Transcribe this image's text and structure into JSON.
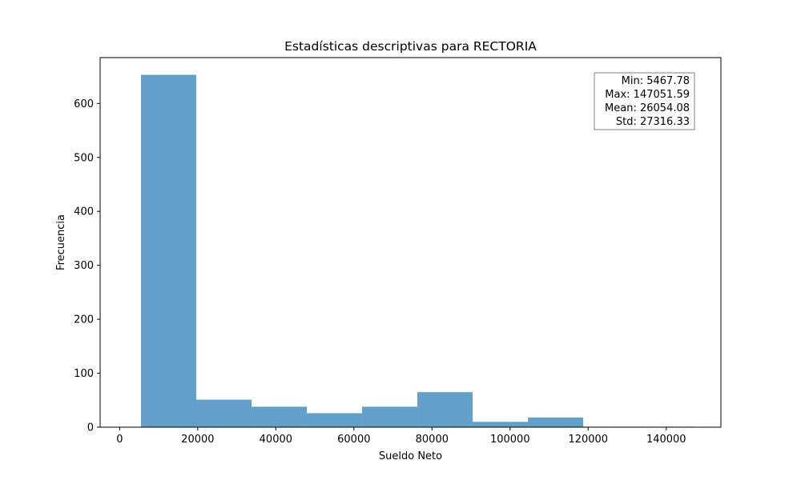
{
  "chart_data": {
    "type": "bar",
    "title": "Estadísticas descriptivas para RECTORIA",
    "xlabel": "Sueldo Neto",
    "ylabel": "Frecuencia",
    "xlim": [
      -5000,
      154000
    ],
    "ylim": [
      0,
      685
    ],
    "xticks": [
      0,
      20000,
      40000,
      60000,
      80000,
      100000,
      120000,
      140000
    ],
    "yticks": [
      0,
      100,
      200,
      300,
      400,
      500,
      600
    ],
    "bin_edges": [
      5467.78,
      19626.16,
      33784.54,
      47942.92,
      62101.3,
      76259.69,
      90418.07,
      104576.45,
      118734.83,
      132893.21,
      147051.59
    ],
    "values": [
      653,
      51,
      38,
      26,
      38,
      65,
      10,
      18,
      1,
      1
    ],
    "bar_color": "#1f77b4",
    "bar_alpha": 0.7,
    "grid": false,
    "stats_box": {
      "lines": [
        "Min: 5467.78",
        "Max: 147051.59",
        "Mean: 26054.08",
        "Std: 27316.33"
      ],
      "placement": "top-right"
    }
  }
}
